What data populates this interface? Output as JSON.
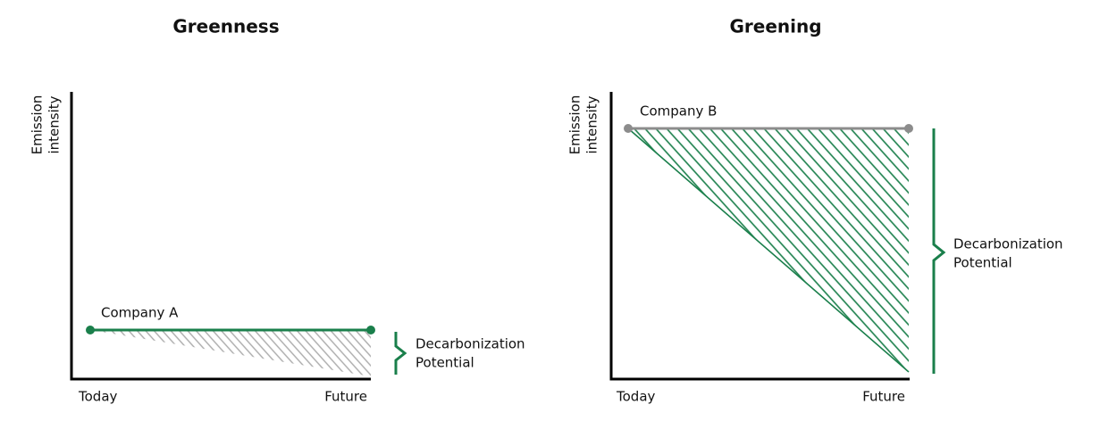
{
  "panels": [
    {
      "title": "Greenness",
      "y_label": [
        "Emission",
        "intensity"
      ],
      "x_labels": [
        "Today",
        "Future"
      ],
      "company": "Company A",
      "potential": [
        "Decarbonization",
        "Potential"
      ]
    },
    {
      "title": "Greening",
      "y_label": [
        "Emission",
        "intensity"
      ],
      "x_labels": [
        "Today",
        "Future"
      ],
      "company": "Company B",
      "potential": [
        "Decarbonization",
        "Potential"
      ]
    }
  ]
}
